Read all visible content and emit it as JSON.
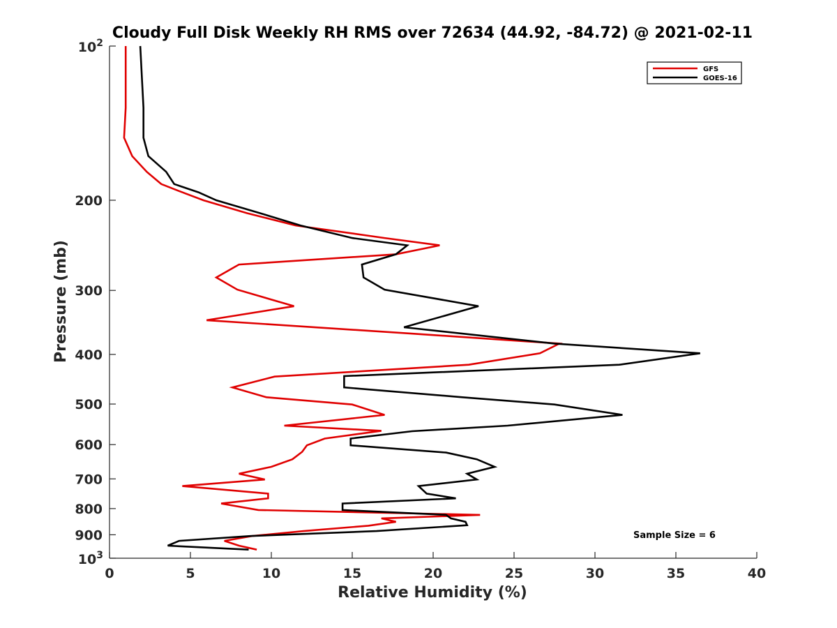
{
  "chart_data": {
    "type": "line",
    "title": "Cloudy Full Disk Weekly RH RMS over 72634 (44.92, -84.72) @ 2021-02-11",
    "xlabel": "Relative Humidity (%)",
    "ylabel": "Pressure (mb)",
    "xlim": [
      0,
      40
    ],
    "ylim": [
      100,
      1000
    ],
    "y_scale": "log",
    "y_reversed": true,
    "grid": false,
    "legend_position": "top-right",
    "x_ticks": [
      "0",
      "5",
      "10",
      "15",
      "20",
      "25",
      "30",
      "35",
      "40"
    ],
    "y_ticks": [
      {
        "value": 100,
        "base": "10",
        "exp": "2"
      },
      {
        "value": 200,
        "label": "200"
      },
      {
        "value": 300,
        "label": "300"
      },
      {
        "value": 400,
        "label": "400"
      },
      {
        "value": 500,
        "label": "500"
      },
      {
        "value": 600,
        "label": "600"
      },
      {
        "value": 700,
        "label": "700"
      },
      {
        "value": 800,
        "label": "800"
      },
      {
        "value": 900,
        "label": "900"
      },
      {
        "value": 1000,
        "base": "10",
        "exp": "3"
      }
    ],
    "annotation": "Sample Size = 6",
    "series": [
      {
        "name": "GFS",
        "color": "#e00000",
        "points": [
          [
            1.0,
            100
          ],
          [
            1.0,
            115
          ],
          [
            1.0,
            132
          ],
          [
            0.9,
            151
          ],
          [
            1.4,
            164
          ],
          [
            2.3,
            176
          ],
          [
            3.2,
            186
          ],
          [
            4.5,
            193
          ],
          [
            5.8,
            200
          ],
          [
            8.5,
            212
          ],
          [
            11.5,
            224
          ],
          [
            17.0,
            237
          ],
          [
            20.4,
            245
          ],
          [
            17.7,
            255
          ],
          [
            8.0,
            267
          ],
          [
            6.6,
            283
          ],
          [
            7.9,
            299
          ],
          [
            11.4,
            322
          ],
          [
            6.0,
            343
          ],
          [
            18.5,
            364
          ],
          [
            27.8,
            381
          ],
          [
            26.6,
            398
          ],
          [
            22.2,
            419
          ],
          [
            10.2,
            442
          ],
          [
            7.6,
            464
          ],
          [
            9.7,
            485
          ],
          [
            15.0,
            501
          ],
          [
            17.0,
            525
          ],
          [
            10.8,
            551
          ],
          [
            16.8,
            564
          ],
          [
            13.3,
            584
          ],
          [
            12.2,
            602
          ],
          [
            11.9,
            620
          ],
          [
            11.3,
            641
          ],
          [
            10.0,
            663
          ],
          [
            8.0,
            684
          ],
          [
            9.6,
            702
          ],
          [
            4.5,
            723
          ],
          [
            9.8,
            748
          ],
          [
            9.8,
            764
          ],
          [
            6.9,
            782
          ],
          [
            9.2,
            805
          ],
          [
            22.9,
            823
          ],
          [
            16.8,
            836
          ],
          [
            17.7,
            849
          ],
          [
            16.0,
            864
          ],
          [
            12.0,
            885
          ],
          [
            8.8,
            905
          ],
          [
            7.1,
            925
          ],
          [
            8.0,
            945
          ],
          [
            9.1,
            962
          ]
        ]
      },
      {
        "name": "GOES-16",
        "color": "#000000",
        "points": [
          [
            1.9,
            100
          ],
          [
            2.0,
            115
          ],
          [
            2.1,
            132
          ],
          [
            2.1,
            151
          ],
          [
            2.4,
            164
          ],
          [
            3.5,
            176
          ],
          [
            4.0,
            186
          ],
          [
            5.5,
            193
          ],
          [
            6.6,
            200
          ],
          [
            9.3,
            212
          ],
          [
            11.8,
            224
          ],
          [
            15.0,
            237
          ],
          [
            18.4,
            245
          ],
          [
            17.7,
            255
          ],
          [
            15.6,
            267
          ],
          [
            15.7,
            283
          ],
          [
            17.0,
            299
          ],
          [
            22.8,
            322
          ],
          [
            18.2,
            354
          ],
          [
            27.5,
            381
          ],
          [
            36.5,
            398
          ],
          [
            31.5,
            419
          ],
          [
            14.5,
            441
          ],
          [
            14.5,
            464
          ],
          [
            21.8,
            485
          ],
          [
            27.5,
            501
          ],
          [
            31.7,
            525
          ],
          [
            24.6,
            551
          ],
          [
            18.7,
            565
          ],
          [
            14.9,
            584
          ],
          [
            14.9,
            602
          ],
          [
            20.8,
            622
          ],
          [
            22.7,
            641
          ],
          [
            23.8,
            663
          ],
          [
            22.1,
            684
          ],
          [
            22.7,
            702
          ],
          [
            19.1,
            723
          ],
          [
            19.6,
            748
          ],
          [
            21.4,
            764
          ],
          [
            14.4,
            782
          ],
          [
            14.4,
            805
          ],
          [
            20.8,
            823
          ],
          [
            21.1,
            836
          ],
          [
            22.0,
            849
          ],
          [
            22.1,
            862
          ],
          [
            16.5,
            885
          ],
          [
            8.7,
            905
          ],
          [
            4.3,
            925
          ],
          [
            3.6,
            945
          ],
          [
            8.6,
            962
          ]
        ]
      }
    ]
  }
}
